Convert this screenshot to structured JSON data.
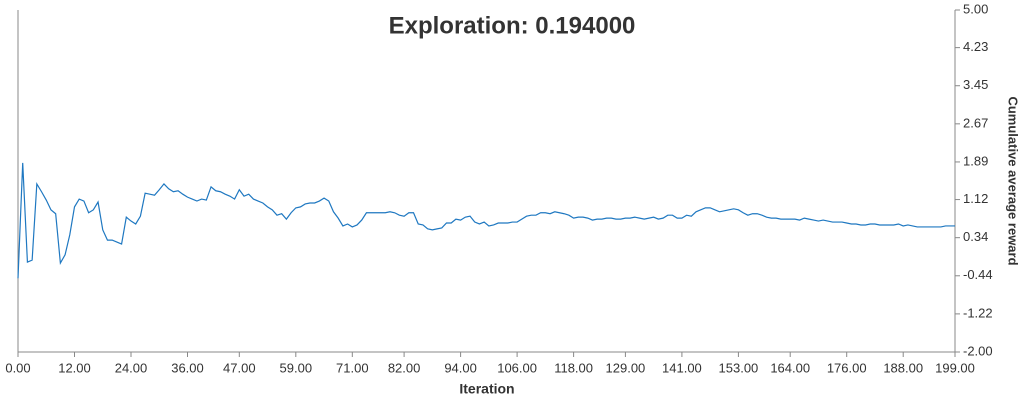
{
  "chart_data": {
    "type": "line",
    "title": "Exploration: 0.194000",
    "x_label": "Iteration",
    "y_label": "Cumulative average reward",
    "color": "#1f78c1",
    "xlim": [
      0,
      199
    ],
    "ylim": [
      -2,
      5
    ],
    "xticks": [
      {
        "value": 0,
        "label": "0.00"
      },
      {
        "value": 12,
        "label": "12.00"
      },
      {
        "value": 24,
        "label": "24.00"
      },
      {
        "value": 36,
        "label": "36.00"
      },
      {
        "value": 47,
        "label": "47.00"
      },
      {
        "value": 59,
        "label": "59.00"
      },
      {
        "value": 71,
        "label": "71.00"
      },
      {
        "value": 82,
        "label": "82.00"
      },
      {
        "value": 94,
        "label": "94.00"
      },
      {
        "value": 106,
        "label": "106.00"
      },
      {
        "value": 118,
        "label": "118.00"
      },
      {
        "value": 129,
        "label": "129.00"
      },
      {
        "value": 141,
        "label": "141.00"
      },
      {
        "value": 153,
        "label": "153.00"
      },
      {
        "value": 164,
        "label": "164.00"
      },
      {
        "value": 176,
        "label": "176.00"
      },
      {
        "value": 188,
        "label": "188.00"
      },
      {
        "value": 199,
        "label": "199.00"
      }
    ],
    "yticks": [
      {
        "value": 5,
        "label": "5.00"
      },
      {
        "value": 4.23,
        "label": "4.23"
      },
      {
        "value": 3.45,
        "label": "3.45"
      },
      {
        "value": 2.67,
        "label": "2.67"
      },
      {
        "value": 1.89,
        "label": "1.89"
      },
      {
        "value": 1.12,
        "label": "1.12"
      },
      {
        "value": 0.34,
        "label": "0.34"
      },
      {
        "value": -0.44,
        "label": "-0.44"
      },
      {
        "value": -1.22,
        "label": "-1.22"
      },
      {
        "value": -2,
        "label": "-2.00"
      }
    ],
    "x": [
      0,
      1,
      2,
      3,
      4,
      5,
      6,
      7,
      8,
      9,
      10,
      11,
      12,
      13,
      14,
      15,
      16,
      17,
      18,
      19,
      20,
      21,
      22,
      23,
      24,
      25,
      26,
      27,
      28,
      29,
      30,
      31,
      32,
      33,
      34,
      35,
      36,
      37,
      38,
      39,
      40,
      41,
      42,
      43,
      44,
      45,
      46,
      47,
      48,
      49,
      50,
      51,
      52,
      53,
      54,
      55,
      56,
      57,
      58,
      59,
      60,
      61,
      62,
      63,
      64,
      65,
      66,
      67,
      68,
      69,
      70,
      71,
      72,
      73,
      74,
      75,
      76,
      77,
      78,
      79,
      80,
      81,
      82,
      83,
      84,
      85,
      86,
      87,
      88,
      89,
      90,
      91,
      92,
      93,
      94,
      95,
      96,
      97,
      98,
      99,
      100,
      101,
      102,
      103,
      104,
      105,
      106,
      107,
      108,
      109,
      110,
      111,
      112,
      113,
      114,
      115,
      116,
      117,
      118,
      119,
      120,
      121,
      122,
      123,
      124,
      125,
      126,
      127,
      128,
      129,
      130,
      131,
      132,
      133,
      134,
      135,
      136,
      137,
      138,
      139,
      140,
      141,
      142,
      143,
      144,
      145,
      146,
      147,
      148,
      149,
      150,
      151,
      152,
      153,
      154,
      155,
      156,
      157,
      158,
      159,
      160,
      161,
      162,
      163,
      164,
      165,
      166,
      167,
      168,
      169,
      170,
      171,
      172,
      173,
      174,
      175,
      176,
      177,
      178,
      179,
      180,
      181,
      182,
      183,
      184,
      185,
      186,
      187,
      188,
      189,
      190,
      191,
      192,
      193,
      194,
      195,
      196,
      197,
      198,
      199
    ],
    "values": [
      -0.49,
      1.87,
      -0.16,
      -0.12,
      1.44,
      1.28,
      1.11,
      0.91,
      0.83,
      -0.18,
      -0.01,
      0.4,
      0.97,
      1.13,
      1.09,
      0.85,
      0.91,
      1.07,
      0.5,
      0.29,
      0.29,
      0.25,
      0.21,
      0.76,
      0.68,
      0.62,
      0.78,
      1.25,
      1.23,
      1.21,
      1.32,
      1.44,
      1.34,
      1.28,
      1.3,
      1.23,
      1.17,
      1.13,
      1.09,
      1.13,
      1.11,
      1.38,
      1.3,
      1.28,
      1.23,
      1.19,
      1.13,
      1.32,
      1.19,
      1.23,
      1.13,
      1.09,
      1.05,
      0.97,
      0.91,
      0.8,
      0.83,
      0.72,
      0.85,
      0.95,
      0.97,
      1.03,
      1.05,
      1.05,
      1.09,
      1.15,
      1.09,
      0.87,
      0.74,
      0.58,
      0.62,
      0.56,
      0.6,
      0.7,
      0.85,
      0.85,
      0.85,
      0.85,
      0.85,
      0.87,
      0.85,
      0.8,
      0.78,
      0.85,
      0.85,
      0.62,
      0.6,
      0.52,
      0.5,
      0.52,
      0.54,
      0.64,
      0.64,
      0.72,
      0.7,
      0.76,
      0.78,
      0.66,
      0.62,
      0.66,
      0.58,
      0.6,
      0.64,
      0.64,
      0.64,
      0.66,
      0.66,
      0.72,
      0.78,
      0.8,
      0.8,
      0.85,
      0.85,
      0.83,
      0.87,
      0.85,
      0.83,
      0.8,
      0.74,
      0.76,
      0.76,
      0.74,
      0.7,
      0.72,
      0.72,
      0.74,
      0.74,
      0.72,
      0.72,
      0.74,
      0.74,
      0.76,
      0.74,
      0.72,
      0.74,
      0.76,
      0.72,
      0.74,
      0.8,
      0.8,
      0.74,
      0.74,
      0.8,
      0.78,
      0.87,
      0.91,
      0.95,
      0.95,
      0.91,
      0.87,
      0.89,
      0.91,
      0.93,
      0.91,
      0.85,
      0.8,
      0.83,
      0.83,
      0.8,
      0.76,
      0.74,
      0.74,
      0.72,
      0.72,
      0.72,
      0.72,
      0.7,
      0.74,
      0.72,
      0.7,
      0.68,
      0.7,
      0.68,
      0.66,
      0.66,
      0.66,
      0.64,
      0.62,
      0.62,
      0.6,
      0.6,
      0.62,
      0.62,
      0.6,
      0.6,
      0.6,
      0.6,
      0.62,
      0.58,
      0.6,
      0.58,
      0.56,
      0.56,
      0.56,
      0.56,
      0.56,
      0.56,
      0.58,
      0.58,
      0.58
    ]
  }
}
